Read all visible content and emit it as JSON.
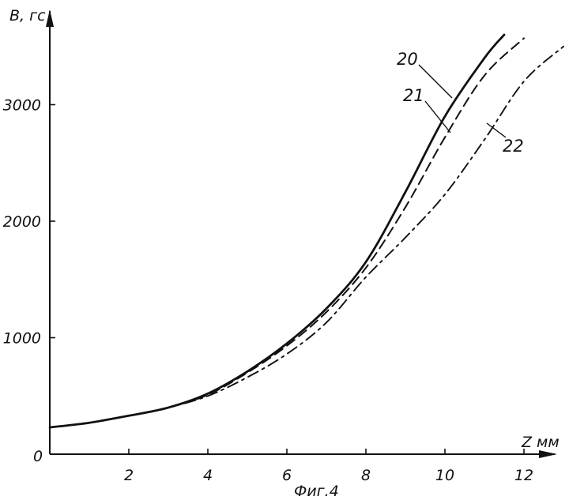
{
  "chart_data": {
    "type": "line",
    "title": "",
    "xlabel": "Z мм",
    "ylabel": "B, гс",
    "caption": "Фиг.4",
    "xlim": [
      0,
      13
    ],
    "ylim": [
      0,
      3700
    ],
    "x_ticks": [
      2,
      4,
      6,
      8,
      10,
      12
    ],
    "y_ticks": [
      1000,
      2000,
      3000
    ],
    "origin_label": "0",
    "grid": false,
    "legend": "none",
    "series": [
      {
        "name": "20",
        "style": "solid",
        "points": [
          [
            0,
            230
          ],
          [
            1,
            270
          ],
          [
            2,
            330
          ],
          [
            3,
            400
          ],
          [
            4,
            520
          ],
          [
            5,
            710
          ],
          [
            6,
            950
          ],
          [
            7,
            1250
          ],
          [
            8,
            1650
          ],
          [
            9,
            2250
          ],
          [
            10,
            2900
          ],
          [
            11,
            3400
          ],
          [
            11.5,
            3600
          ]
        ]
      },
      {
        "name": "21",
        "style": "dashed",
        "points": [
          [
            0,
            230
          ],
          [
            1,
            270
          ],
          [
            2,
            330
          ],
          [
            3,
            400
          ],
          [
            4,
            510
          ],
          [
            5,
            700
          ],
          [
            6,
            930
          ],
          [
            7,
            1220
          ],
          [
            8,
            1600
          ],
          [
            9,
            2120
          ],
          [
            10,
            2720
          ],
          [
            11,
            3250
          ],
          [
            12,
            3570
          ]
        ]
      },
      {
        "name": "22",
        "style": "dash-dot",
        "points": [
          [
            0,
            230
          ],
          [
            1,
            270
          ],
          [
            2,
            330
          ],
          [
            3,
            400
          ],
          [
            4,
            500
          ],
          [
            5,
            660
          ],
          [
            6,
            860
          ],
          [
            7,
            1130
          ],
          [
            8,
            1520
          ],
          [
            9,
            1860
          ],
          [
            10,
            2230
          ],
          [
            11,
            2700
          ],
          [
            12,
            3200
          ],
          [
            13,
            3500
          ]
        ]
      }
    ]
  }
}
